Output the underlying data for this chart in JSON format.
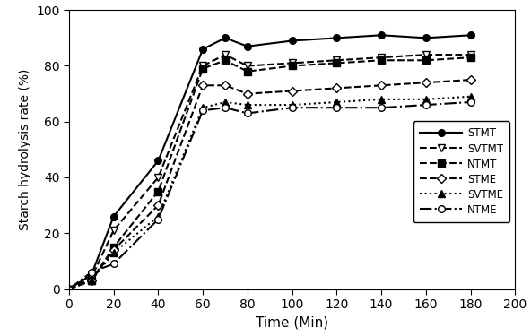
{
  "title": "",
  "xlabel": "Time (Min)",
  "ylabel": "Starch hydrolysis rate (%)",
  "xlim": [
    0,
    200
  ],
  "ylim": [
    0,
    100
  ],
  "xticks": [
    0,
    20,
    40,
    60,
    80,
    100,
    120,
    140,
    160,
    180,
    200
  ],
  "yticks": [
    0,
    20,
    40,
    60,
    80,
    100
  ],
  "series": [
    {
      "label": "STMT",
      "x": [
        0,
        10,
        20,
        40,
        60,
        70,
        80,
        100,
        120,
        140,
        160,
        180
      ],
      "y": [
        0,
        5,
        26,
        46,
        86,
        90,
        87,
        89,
        90,
        91,
        90,
        91
      ],
      "linestyle": "-",
      "marker": "o",
      "markerfacecolor": "black",
      "markeredgecolor": "black",
      "color": "black",
      "linewidth": 1.5,
      "markersize": 5.5
    },
    {
      "label": "SVTMT",
      "x": [
        0,
        10,
        20,
        40,
        60,
        70,
        80,
        100,
        120,
        140,
        160,
        180
      ],
      "y": [
        0,
        4,
        21,
        40,
        80,
        84,
        80,
        81,
        82,
        83,
        84,
        84
      ],
      "linestyle": "--",
      "marker": "v",
      "markerfacecolor": "white",
      "markeredgecolor": "black",
      "color": "black",
      "linewidth": 1.5,
      "markersize": 5.5
    },
    {
      "label": "NTMT",
      "x": [
        0,
        10,
        20,
        40,
        60,
        70,
        80,
        100,
        120,
        140,
        160,
        180
      ],
      "y": [
        0,
        3,
        15,
        35,
        79,
        82,
        78,
        80,
        81,
        82,
        82,
        83
      ],
      "linestyle": "--",
      "marker": "s",
      "markerfacecolor": "black",
      "markeredgecolor": "black",
      "color": "black",
      "linewidth": 1.5,
      "markersize": 5.5
    },
    {
      "label": "STME",
      "x": [
        0,
        10,
        20,
        40,
        60,
        70,
        80,
        100,
        120,
        140,
        160,
        180
      ],
      "y": [
        0,
        3,
        14,
        30,
        73,
        73,
        70,
        71,
        72,
        73,
        74,
        75
      ],
      "linestyle": "--",
      "marker": "D",
      "markerfacecolor": "white",
      "markeredgecolor": "black",
      "color": "black",
      "linewidth": 1.5,
      "markersize": 5.0
    },
    {
      "label": "SVTME",
      "x": [
        0,
        10,
        20,
        40,
        60,
        70,
        80,
        100,
        120,
        140,
        160,
        180
      ],
      "y": [
        0,
        3,
        13,
        26,
        65,
        67,
        66,
        66,
        67,
        68,
        68,
        69
      ],
      "linestyle": ":",
      "marker": "^",
      "markerfacecolor": "black",
      "markeredgecolor": "black",
      "color": "black",
      "linewidth": 1.5,
      "markersize": 5.5
    },
    {
      "label": "NTME",
      "x": [
        0,
        10,
        20,
        40,
        60,
        70,
        80,
        100,
        120,
        140,
        160,
        180
      ],
      "y": [
        0,
        6,
        9,
        25,
        64,
        65,
        63,
        65,
        65,
        65,
        66,
        67
      ],
      "linestyle": "-.",
      "marker": "o",
      "markerfacecolor": "white",
      "markeredgecolor": "black",
      "color": "black",
      "linewidth": 1.5,
      "markersize": 5.5
    }
  ],
  "figsize": [
    5.92,
    3.75
  ],
  "dpi": 100
}
